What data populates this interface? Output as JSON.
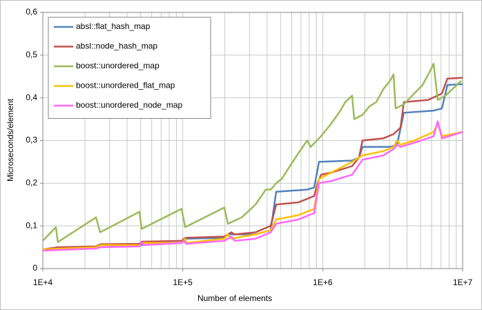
{
  "chart_data": {
    "type": "line",
    "xlabel": "Number of elements",
    "ylabel": "Microseconds/element",
    "xscale": "log",
    "xlim": [
      10000,
      10000000
    ],
    "ylim": [
      0,
      0.6
    ],
    "xticks": [
      {
        "value": 10000,
        "label": "1E+4"
      },
      {
        "value": 100000,
        "label": "1E+5"
      },
      {
        "value": 1000000,
        "label": "1E+6"
      },
      {
        "value": 10000000,
        "label": "1E+7"
      }
    ],
    "xminorticks": [
      20000,
      30000,
      40000,
      50000,
      60000,
      70000,
      80000,
      90000,
      200000,
      300000,
      400000,
      500000,
      600000,
      700000,
      800000,
      900000,
      2000000,
      3000000,
      4000000,
      5000000,
      6000000,
      7000000,
      8000000,
      9000000
    ],
    "yticks": [
      {
        "value": 0,
        "label": "0"
      },
      {
        "value": 0.1,
        "label": "0,1"
      },
      {
        "value": 0.2,
        "label": "0,2"
      },
      {
        "value": 0.3,
        "label": "0,3"
      },
      {
        "value": 0.4,
        "label": "0,4"
      },
      {
        "value": 0.5,
        "label": "0,5"
      },
      {
        "value": 0.6,
        "label": "0,6"
      }
    ],
    "grid": true,
    "legend": "upper left",
    "series": [
      {
        "name": "absl::flat_hash_map",
        "color": "#4f81bd",
        "x": [
          10000,
          12400,
          25700,
          49000,
          98100,
          104000,
          198000,
          210000,
          331000,
          425000,
          465000,
          775000,
          869000,
          941000,
          1622000,
          1817000,
          1923000,
          3030000,
          3395000,
          3802000,
          6199000,
          7105000,
          7780000,
          10000000
        ],
        "values": [
          0.043,
          0.045,
          0.05,
          0.055,
          0.06,
          0.07,
          0.072,
          0.08,
          0.08,
          0.09,
          0.18,
          0.185,
          0.19,
          0.25,
          0.253,
          0.26,
          0.285,
          0.285,
          0.29,
          0.365,
          0.37,
          0.375,
          0.43,
          0.432
        ]
      },
      {
        "name": "absl::node_hash_map",
        "color": "#c0504d",
        "x": [
          10000,
          12800,
          24000,
          25700,
          49000,
          50800,
          98100,
          104000,
          198000,
          222000,
          235000,
          331000,
          425000,
          465000,
          669000,
          869000,
          919000,
          973000,
          1153000,
          1622000,
          1817000,
          1923000,
          2705000,
          3207000,
          3594000,
          3802000,
          5660000,
          7105000,
          7780000,
          10000000
        ],
        "values": [
          0.045,
          0.05,
          0.052,
          0.057,
          0.058,
          0.063,
          0.065,
          0.072,
          0.075,
          0.085,
          0.08,
          0.085,
          0.1,
          0.15,
          0.155,
          0.17,
          0.2,
          0.22,
          0.225,
          0.24,
          0.26,
          0.3,
          0.305,
          0.315,
          0.33,
          0.39,
          0.395,
          0.41,
          0.445,
          0.447
        ]
      },
      {
        "name": "boost::unordered_map",
        "color": "#9bbb59",
        "x": [
          10000,
          12400,
          12800,
          24000,
          25700,
          49000,
          50800,
          98100,
          104000,
          198000,
          210000,
          264000,
          331000,
          392000,
          425000,
          465000,
          509000,
          583000,
          669000,
          775000,
          820000,
          973000,
          1153000,
          1337000,
          1448000,
          1622000,
          1679000,
          1923000,
          2156000,
          2415000,
          2705000,
          3030000,
          3207000,
          3319000,
          3802000,
          4508000,
          5169000,
          5790000,
          6199000,
          6637000,
          7520000,
          8425000,
          9760000
        ],
        "values": [
          0.065,
          0.097,
          0.062,
          0.12,
          0.085,
          0.133,
          0.093,
          0.14,
          0.097,
          0.143,
          0.105,
          0.12,
          0.15,
          0.185,
          0.185,
          0.2,
          0.21,
          0.24,
          0.27,
          0.3,
          0.285,
          0.31,
          0.34,
          0.37,
          0.39,
          0.405,
          0.35,
          0.36,
          0.38,
          0.39,
          0.42,
          0.44,
          0.455,
          0.375,
          0.385,
          0.41,
          0.43,
          0.46,
          0.48,
          0.395,
          0.405,
          0.42,
          0.44
        ]
      },
      {
        "name": "boost::unordered_flat_map",
        "color": "#ffc000",
        "x": [
          10000,
          24000,
          25700,
          49000,
          50800,
          98100,
          104000,
          106000,
          198000,
          210000,
          222000,
          331000,
          425000,
          465000,
          669000,
          869000,
          941000,
          1153000,
          1622000,
          1923000,
          2705000,
          3207000,
          3395000,
          3594000,
          4508000,
          6199000,
          6637000,
          7105000,
          10000000
        ],
        "values": [
          0.045,
          0.05,
          0.055,
          0.055,
          0.06,
          0.06,
          0.07,
          0.06,
          0.07,
          0.08,
          0.07,
          0.08,
          0.09,
          0.115,
          0.125,
          0.14,
          0.21,
          0.225,
          0.25,
          0.265,
          0.275,
          0.285,
          0.3,
          0.29,
          0.3,
          0.32,
          0.34,
          0.31,
          0.32
        ]
      },
      {
        "name": "boost::unordered_node_map",
        "color": "#ff66ff",
        "x": [
          10000,
          24000,
          25700,
          49000,
          50800,
          52500,
          98100,
          101500,
          106000,
          198000,
          222000,
          235000,
          331000,
          425000,
          465000,
          669000,
          869000,
          941000,
          1153000,
          1622000,
          1923000,
          2705000,
          3207000,
          3395000,
          3594000,
          5052000,
          6199000,
          6637000,
          7105000,
          10000000
        ],
        "values": [
          0.042,
          0.047,
          0.05,
          0.052,
          0.062,
          0.055,
          0.06,
          0.065,
          0.058,
          0.065,
          0.075,
          0.065,
          0.07,
          0.085,
          0.105,
          0.115,
          0.13,
          0.2,
          0.205,
          0.22,
          0.255,
          0.265,
          0.28,
          0.29,
          0.285,
          0.3,
          0.31,
          0.345,
          0.305,
          0.32
        ]
      }
    ]
  }
}
